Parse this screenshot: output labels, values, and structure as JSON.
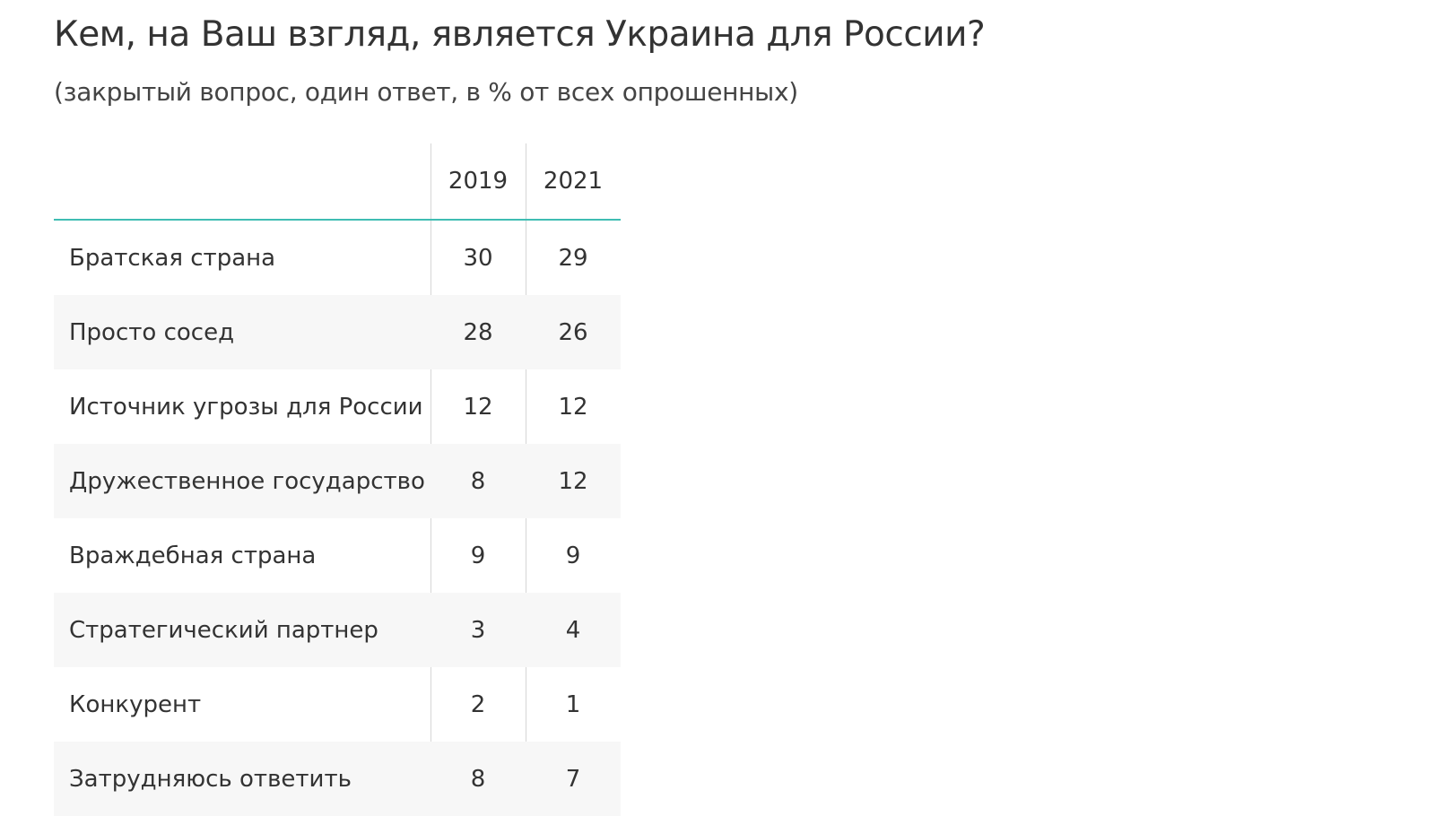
{
  "title": "Кем, на Ваш взгляд, является Украина для России?",
  "subtitle": "(закрытый вопрос, один ответ, в % от всех опрошенных)",
  "chart_data": {
    "type": "table",
    "columns": [
      "2019",
      "2021"
    ],
    "rows": [
      {
        "label": "Братская страна",
        "values": [
          30,
          29
        ]
      },
      {
        "label": "Просто сосед",
        "values": [
          28,
          26
        ]
      },
      {
        "label": "Источник угрозы для России",
        "values": [
          12,
          12
        ]
      },
      {
        "label": "Дружественное государство",
        "values": [
          8,
          12
        ]
      },
      {
        "label": "Враждебная страна",
        "values": [
          9,
          9
        ]
      },
      {
        "label": "Стратегический партнер",
        "values": [
          3,
          4
        ]
      },
      {
        "label": "Конкурент",
        "values": [
          2,
          1
        ]
      },
      {
        "label": "Затрудняюсь ответить",
        "values": [
          8,
          7
        ]
      }
    ]
  },
  "colors": {
    "header_rule": "#3fbdb3",
    "shaded_row": "#f7f7f7",
    "grid_line": "#d6d6d6",
    "text": "#333333"
  }
}
